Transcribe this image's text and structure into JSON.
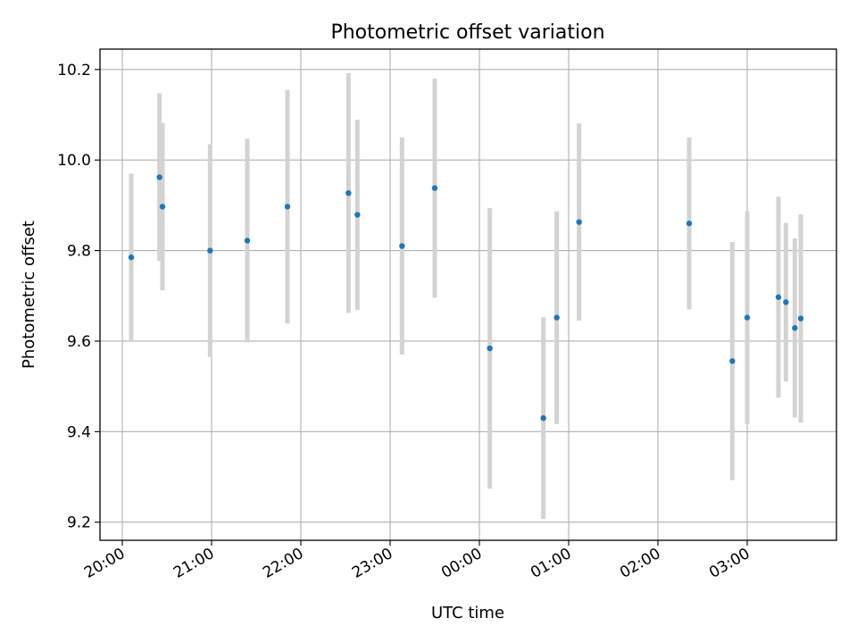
{
  "chart_data": {
    "type": "scatter",
    "title": "Photometric offset variation",
    "xlabel": "UTC time",
    "ylabel": "Photometric offset",
    "x_ticks": [
      "20:00",
      "21:00",
      "22:00",
      "23:00",
      "00:00",
      "01:00",
      "02:00",
      "03:00"
    ],
    "y_ticks": [
      "9.2",
      "9.4",
      "9.6",
      "9.8",
      "10.0",
      "10.2"
    ],
    "xlim": [
      "19:45",
      "04:00"
    ],
    "ylim": [
      9.16,
      10.245
    ],
    "grid": true,
    "marker_color": "#1f77b4",
    "errorbar_color": "#d3d3d3",
    "points": [
      {
        "x": "20:06",
        "y": 9.785,
        "err": 0.185
      },
      {
        "x": "20:25",
        "y": 9.962,
        "err": 0.185
      },
      {
        "x": "20:27",
        "y": 9.897,
        "err": 0.185
      },
      {
        "x": "20:59",
        "y": 9.8,
        "err": 0.235
      },
      {
        "x": "21:24",
        "y": 9.822,
        "err": 0.225
      },
      {
        "x": "21:51",
        "y": 9.897,
        "err": 0.258
      },
      {
        "x": "22:32",
        "y": 9.927,
        "err": 0.265
      },
      {
        "x": "22:38",
        "y": 9.879,
        "err": 0.21
      },
      {
        "x": "23:08",
        "y": 9.81,
        "err": 0.24
      },
      {
        "x": "23:30",
        "y": 9.938,
        "err": 0.242
      },
      {
        "x": "00:07",
        "y": 9.584,
        "err": 0.31
      },
      {
        "x": "00:43",
        "y": 9.43,
        "err": 0.223
      },
      {
        "x": "00:52",
        "y": 9.652,
        "err": 0.235
      },
      {
        "x": "01:07",
        "y": 9.863,
        "err": 0.218
      },
      {
        "x": "02:21",
        "y": 9.86,
        "err": 0.19
      },
      {
        "x": "02:50",
        "y": 9.556,
        "err": 0.263
      },
      {
        "x": "03:00",
        "y": 9.652,
        "err": 0.235
      },
      {
        "x": "03:21",
        "y": 9.697,
        "err": 0.222
      },
      {
        "x": "03:26",
        "y": 9.686,
        "err": 0.175
      },
      {
        "x": "03:32",
        "y": 9.629,
        "err": 0.198
      },
      {
        "x": "03:36",
        "y": 9.65,
        "err": 0.23
      }
    ]
  }
}
